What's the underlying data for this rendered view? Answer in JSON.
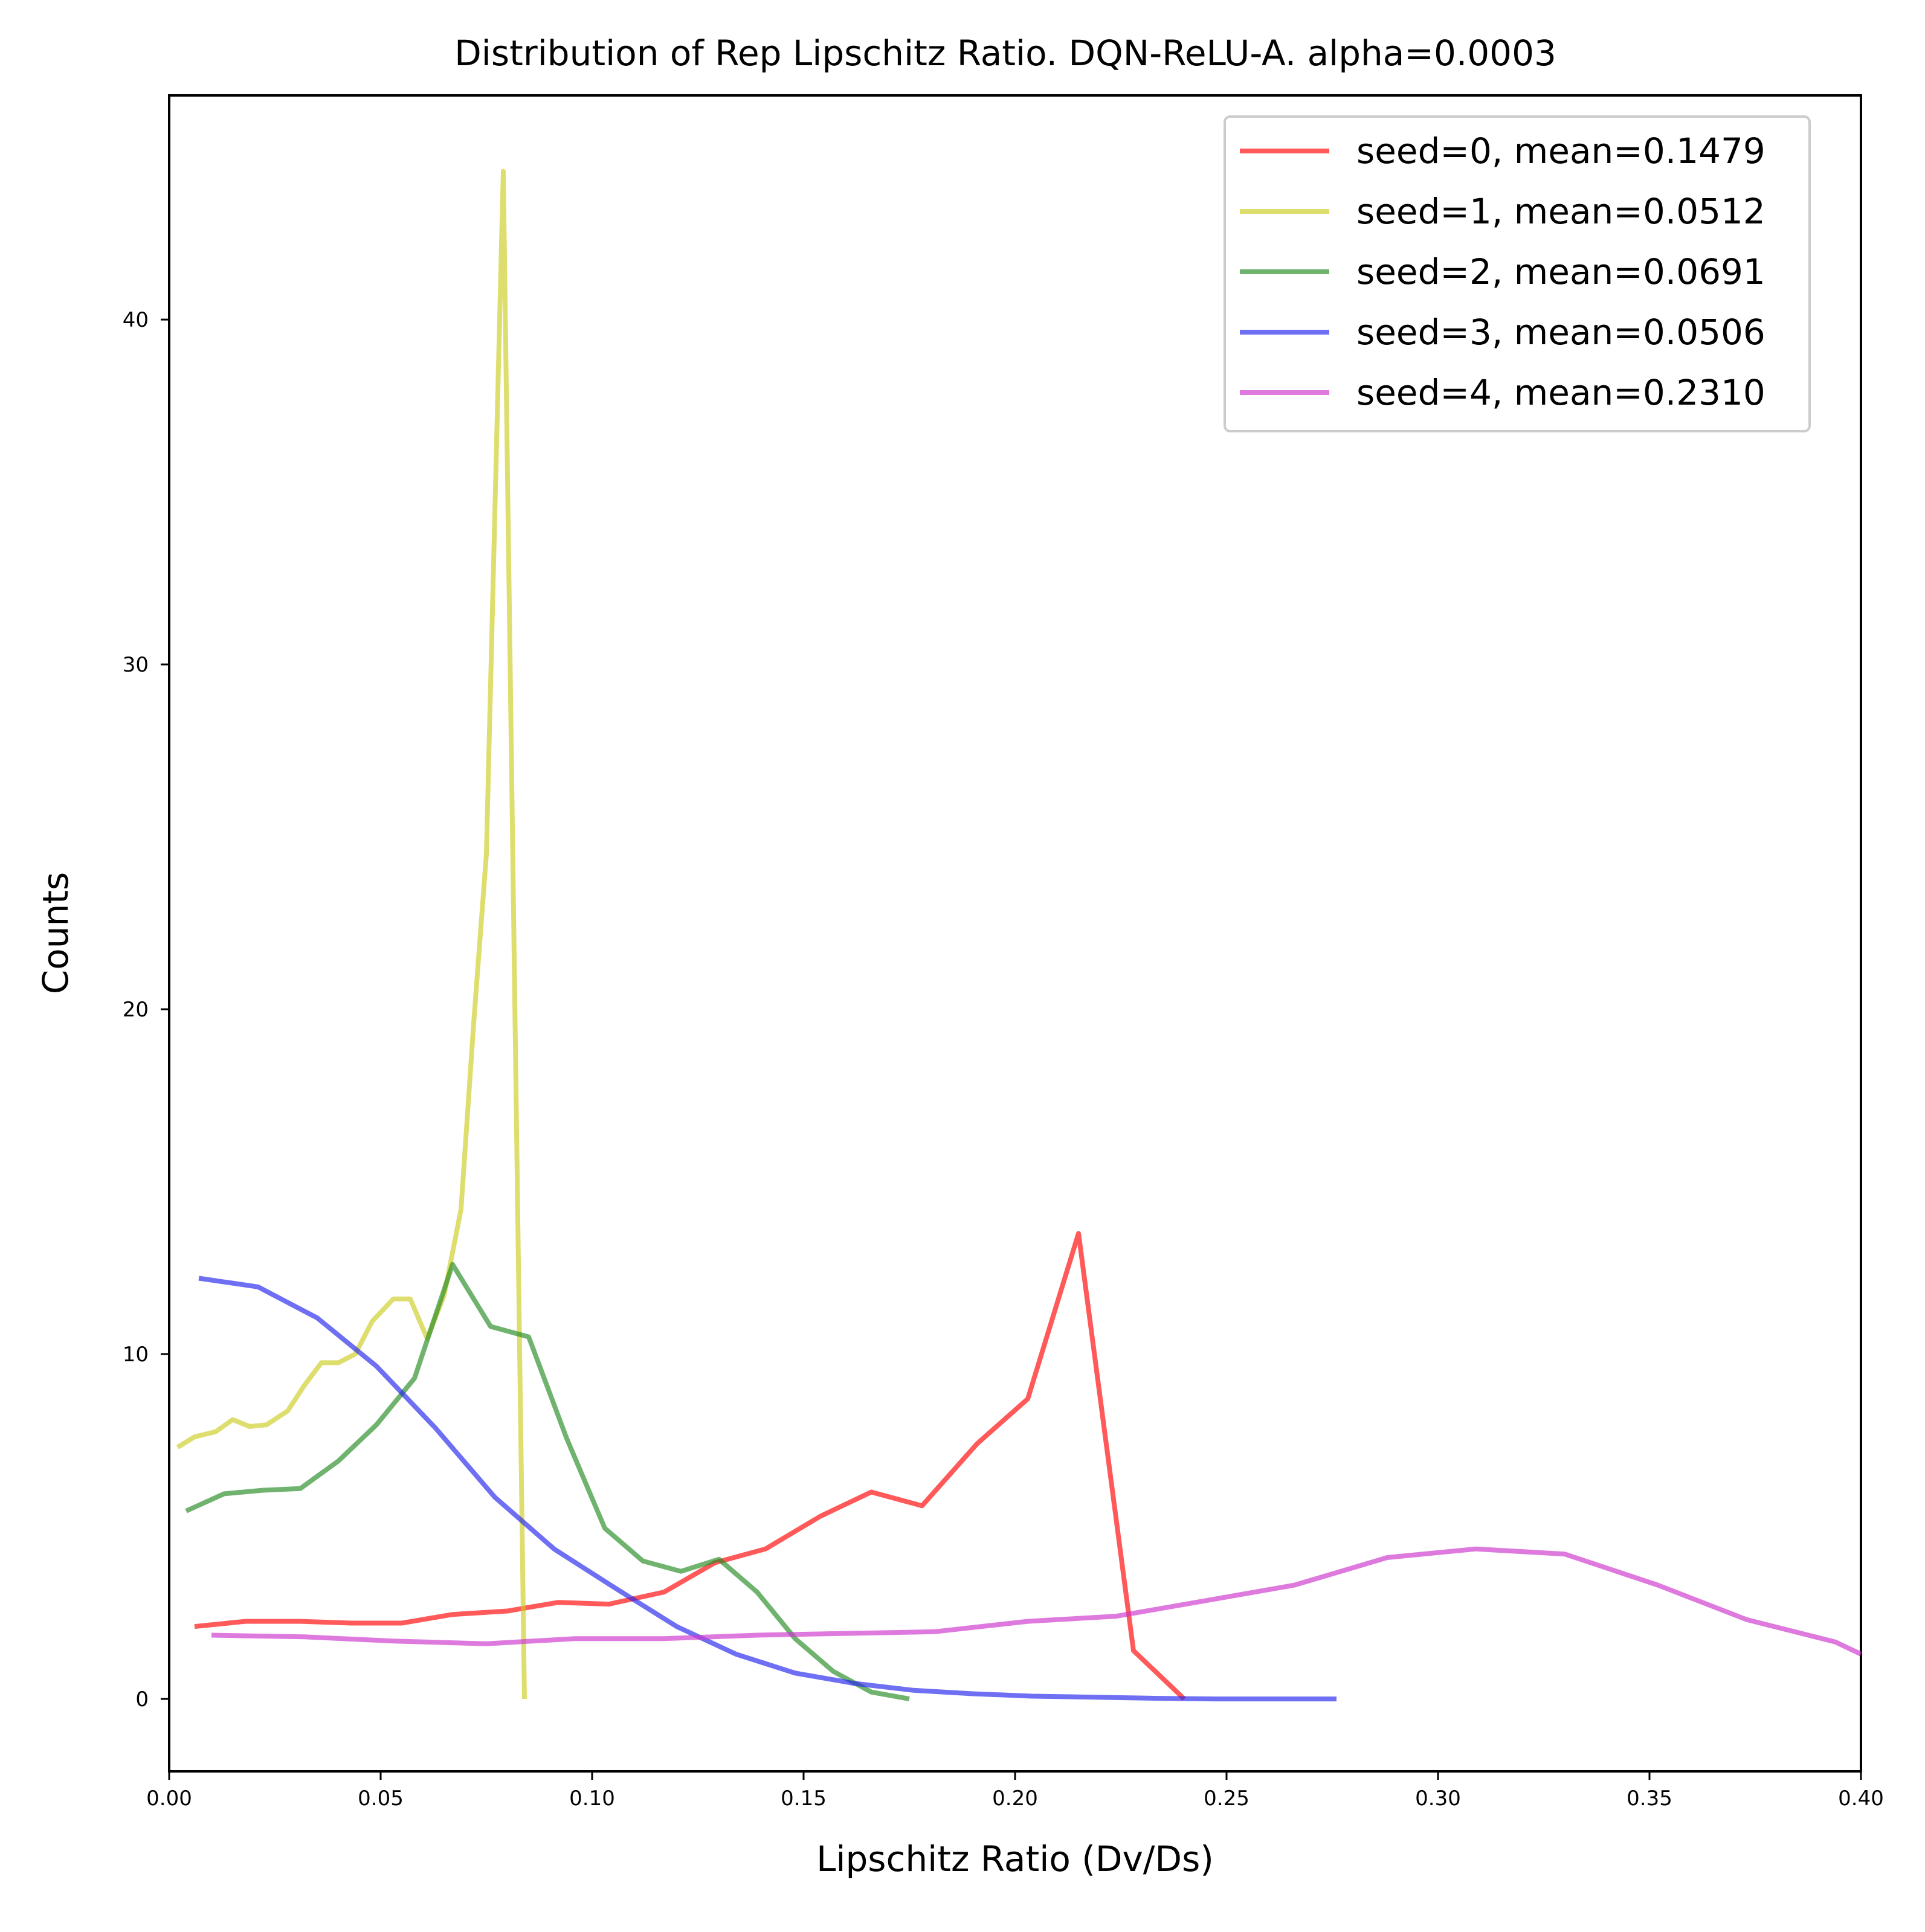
{
  "chart_data": {
    "type": "line",
    "title": "Distribution of Rep Lipschitz Ratio. DQN-ReLU-A. alpha=0.0003",
    "xlabel": "Lipschitz Ratio (Dv/Ds)",
    "ylabel": "Counts",
    "xlim": [
      0.0,
      0.4
    ],
    "ylim": [
      -2.1,
      46.5
    ],
    "xticks": [
      "0.00",
      "0.05",
      "0.10",
      "0.15",
      "0.20",
      "0.25",
      "0.30",
      "0.35",
      "0.40"
    ],
    "xtick_values": [
      0.0,
      0.05,
      0.1,
      0.15,
      0.2,
      0.25,
      0.3,
      0.35,
      0.4
    ],
    "yticks": [
      "0",
      "10",
      "20",
      "30",
      "40"
    ],
    "ytick_values": [
      0,
      10,
      20,
      30,
      40
    ],
    "grid": false,
    "legend_position": "top-right",
    "series": [
      {
        "name": "seed=0, mean=0.1479",
        "color": "#ff0000",
        "x": [
          0.006,
          0.018,
          0.031,
          0.043,
          0.055,
          0.067,
          0.08,
          0.092,
          0.104,
          0.117,
          0.129,
          0.141,
          0.154,
          0.166,
          0.178,
          0.191,
          0.203,
          0.215,
          0.228,
          0.24
        ],
        "y": [
          2.1,
          2.25,
          2.25,
          2.2,
          2.2,
          2.45,
          2.55,
          2.8,
          2.75,
          3.1,
          3.95,
          4.35,
          5.3,
          6.0,
          5.6,
          7.4,
          8.7,
          13.5,
          1.4,
          0.0
        ]
      },
      {
        "name": "seed=1, mean=0.0512",
        "color": "#cccc22",
        "x": [
          0.002,
          0.006,
          0.011,
          0.015,
          0.019,
          0.023,
          0.028,
          0.032,
          0.036,
          0.04,
          0.044,
          0.048,
          0.053,
          0.057,
          0.061,
          0.065,
          0.069,
          0.072,
          0.075,
          0.079,
          0.084
        ],
        "y": [
          7.3,
          7.6,
          7.75,
          8.1,
          7.9,
          7.95,
          8.35,
          9.1,
          9.75,
          9.75,
          10.0,
          10.95,
          11.6,
          11.6,
          10.45,
          11.7,
          14.2,
          19.6,
          24.5,
          44.3,
          0.0
        ]
      },
      {
        "name": "seed=2, mean=0.0691",
        "color": "#228b22",
        "x": [
          0.004,
          0.013,
          0.022,
          0.031,
          0.04,
          0.049,
          0.058,
          0.067,
          0.076,
          0.085,
          0.094,
          0.103,
          0.112,
          0.121,
          0.13,
          0.139,
          0.148,
          0.157,
          0.166,
          0.175
        ],
        "y": [
          5.45,
          5.95,
          6.05,
          6.1,
          6.9,
          7.95,
          9.3,
          12.6,
          10.8,
          10.5,
          7.55,
          4.95,
          4.0,
          3.7,
          4.05,
          3.1,
          1.75,
          0.8,
          0.2,
          0.0
        ]
      },
      {
        "name": "seed=3, mean=0.0506",
        "color": "#2222ee",
        "x": [
          0.007,
          0.021,
          0.035,
          0.049,
          0.063,
          0.077,
          0.091,
          0.105,
          0.12,
          0.134,
          0.148,
          0.162,
          0.176,
          0.19,
          0.204,
          0.219,
          0.233,
          0.247,
          0.262,
          0.276
        ],
        "y": [
          12.2,
          11.95,
          11.05,
          9.65,
          7.85,
          5.85,
          4.35,
          3.25,
          2.1,
          1.3,
          0.75,
          0.45,
          0.25,
          0.15,
          0.08,
          0.05,
          0.02,
          0.0,
          0.0,
          0.0
        ]
      },
      {
        "name": "seed=4, mean=0.2310",
        "color": "#cc33cc",
        "x": [
          0.01,
          0.032,
          0.053,
          0.075,
          0.096,
          0.117,
          0.139,
          0.16,
          0.181,
          0.203,
          0.224,
          0.245,
          0.266,
          0.288,
          0.309,
          0.33,
          0.352,
          0.373,
          0.394,
          0.4
        ],
        "y": [
          1.85,
          1.8,
          1.68,
          1.6,
          1.75,
          1.75,
          1.85,
          1.9,
          1.95,
          2.25,
          2.4,
          2.85,
          3.3,
          4.1,
          4.35,
          4.2,
          3.3,
          2.3,
          1.65,
          1.3
        ]
      }
    ]
  }
}
